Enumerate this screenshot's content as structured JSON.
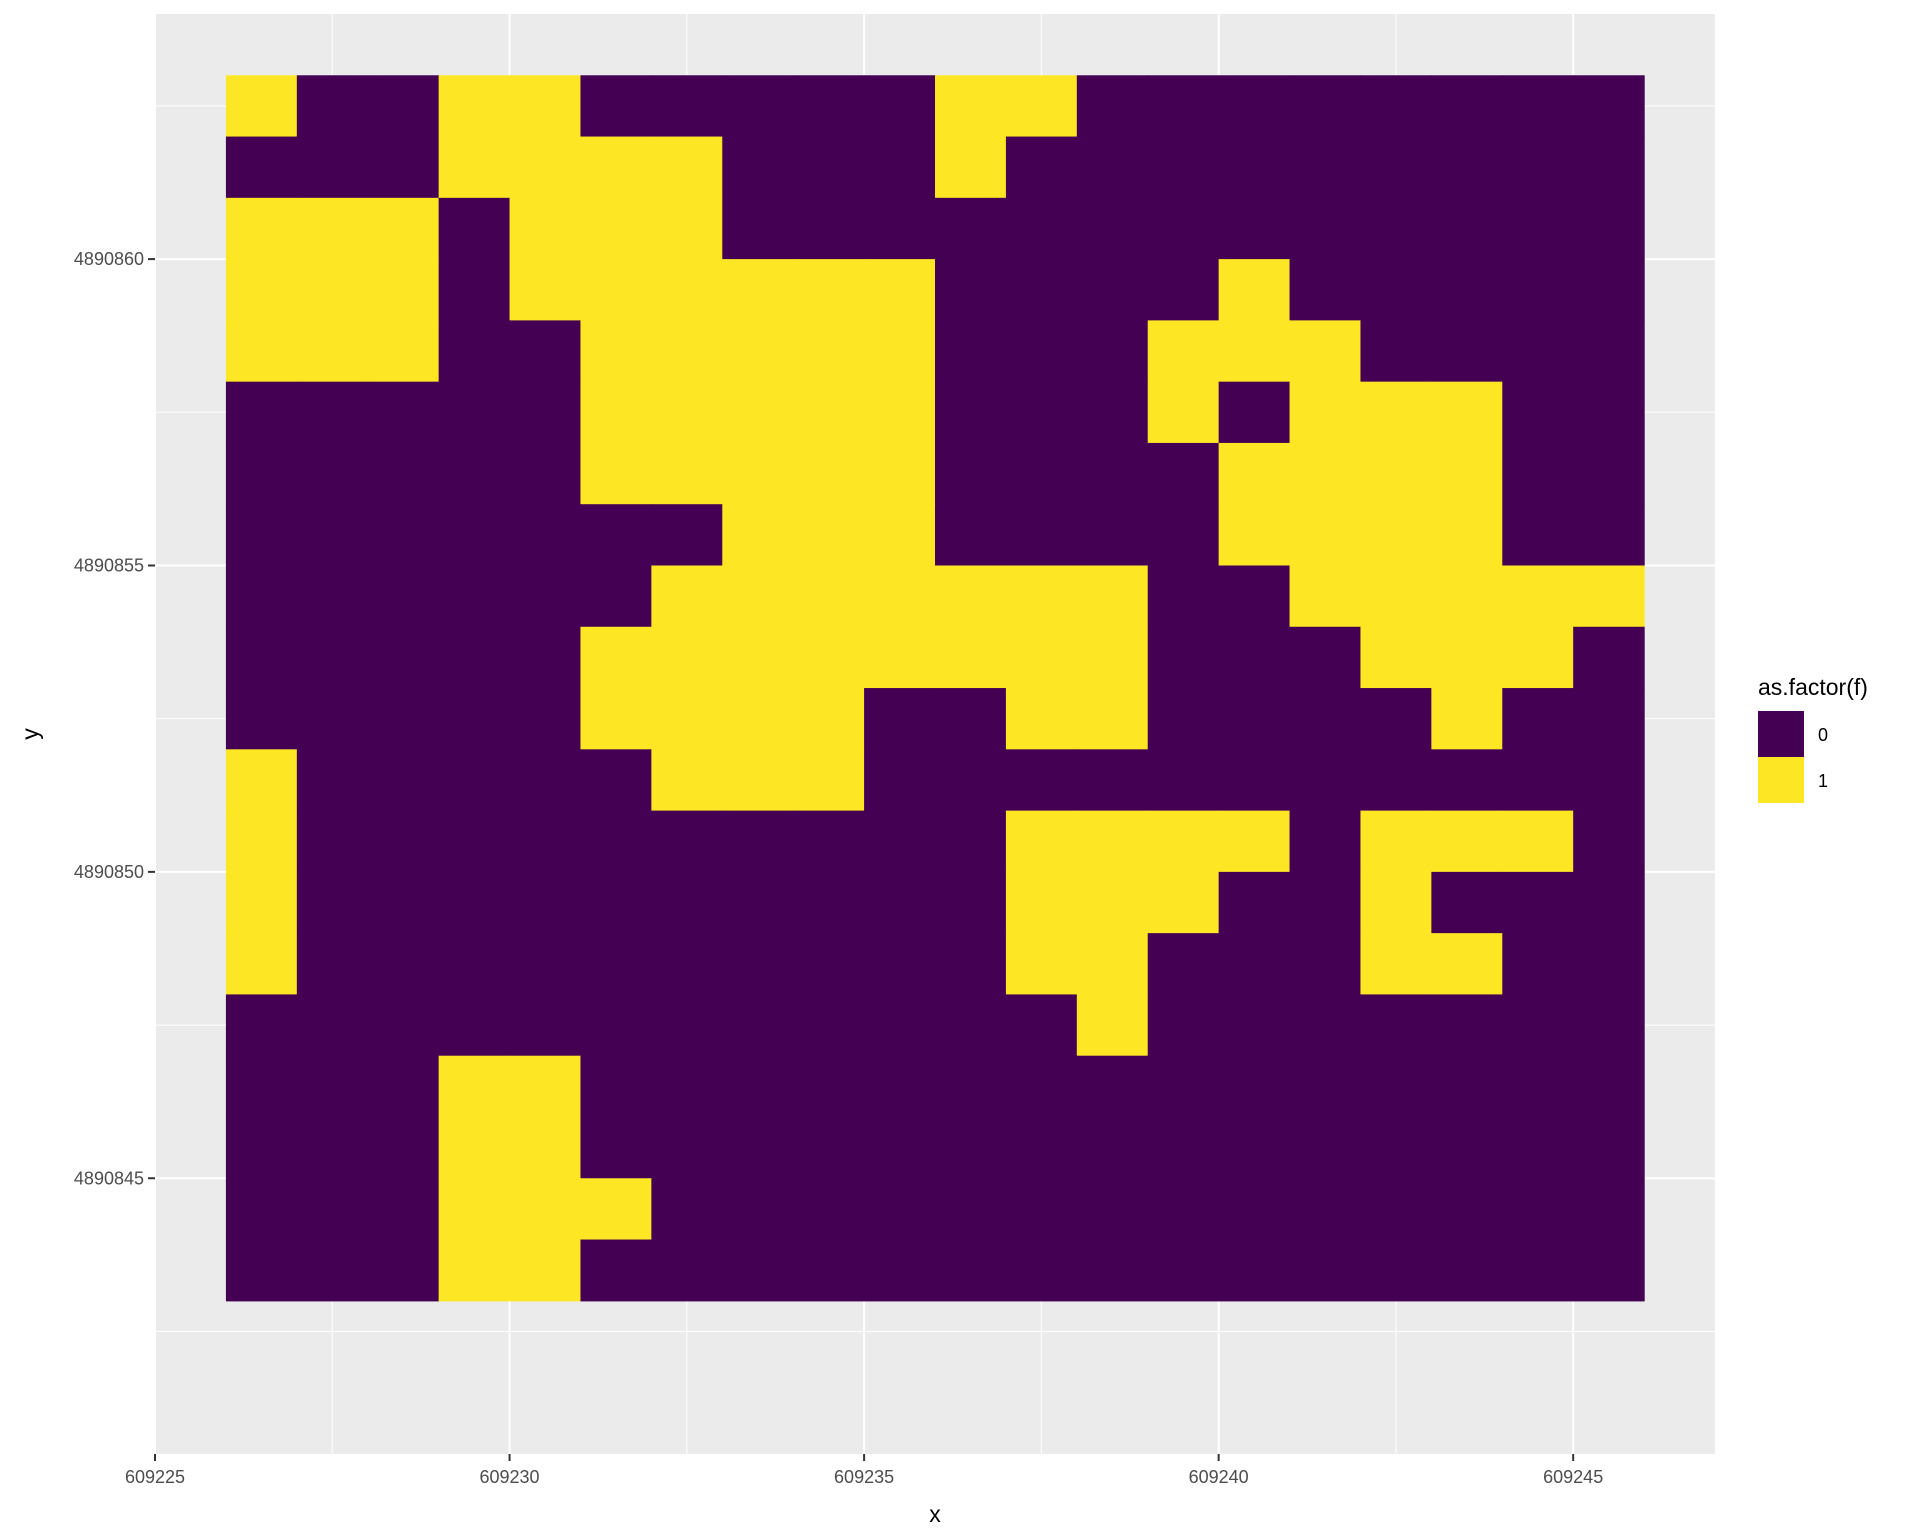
{
  "chart_data": {
    "type": "heatmap",
    "xlabel": "x",
    "ylabel": "y",
    "x_ticks": [
      609225,
      609230,
      609235,
      609240,
      609245
    ],
    "y_ticks": [
      4890845,
      4890850,
      4890855,
      4890860
    ],
    "x_tick_labels": [
      "609225",
      "609230",
      "609235",
      "609240",
      "609245"
    ],
    "y_tick_labels": [
      "4890845",
      "4890850",
      "4890855",
      "4890860"
    ],
    "xlim": [
      609225,
      609247
    ],
    "ylim": [
      4890840.5,
      4890864
    ],
    "cell_size": 1,
    "x_origin": 609226,
    "y_top": 4890863,
    "grid": true,
    "legend": {
      "title": "as.factor(f)",
      "position": "right",
      "entries": [
        {
          "label": "0",
          "color": "#440154"
        },
        {
          "label": "1",
          "color": "#FDE725"
        }
      ]
    },
    "colors": {
      "0": "#440154",
      "1": "#FDE725",
      "panel": "#EBEBEB",
      "grid": "#FFFFFF"
    },
    "grid_values": [
      "10011000001100000000",
      "00011110001000000000",
      "11101110000000000000",
      "11101111110000100000",
      "11100111110001110000",
      "00000111110001011100",
      "00000111110000111100",
      "00000001110000111100",
      "00000011111110011111",
      "00000111111110001110",
      "00000111100110000100",
      "10000011100000000000",
      "10000000000111101110",
      "10000000000111001000",
      "10000000000110001100",
      "00000000000010000000",
      "00011000000000000000",
      "00011000000000000000",
      "00011100000000000000",
      "00011000000000000000"
    ]
  }
}
